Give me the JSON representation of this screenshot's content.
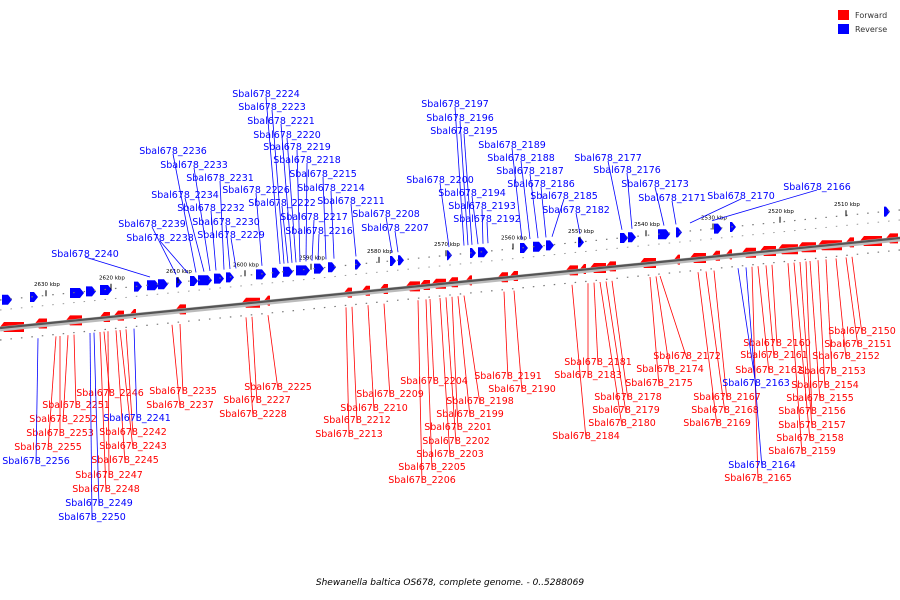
{
  "legend": {
    "forward_label": "Forward",
    "reverse_label": "Reverse",
    "forward_color": "#ff0000",
    "reverse_color": "#0000ff"
  },
  "caption": "Shewanella baltica OS678, complete genome. - 0..5288069",
  "axis": {
    "ticks": [
      "2630 kbp",
      "2620 kbp",
      "2610 kbp",
      "2600 kbp",
      "2590 kbp",
      "2580 kbp",
      "2570 kbp",
      "2560 kbp",
      "2550 kbp",
      "2540 kbp",
      "2530 kbp",
      "2520 kbp",
      "2510 kbp"
    ]
  },
  "genes": {
    "reverse": [
      "Sbal678_2166",
      "Sbal678_2170",
      "Sbal678_2171",
      "Sbal678_2173",
      "Sbal678_2176",
      "Sbal678_2177",
      "Sbal678_2182",
      "Sbal678_2185",
      "Sbal678_2186",
      "Sbal678_2187",
      "Sbal678_2188",
      "Sbal678_2189",
      "Sbal678_2192",
      "Sbal678_2193",
      "Sbal678_2194",
      "Sbal678_2195",
      "Sbal678_2196",
      "Sbal678_2197",
      "Sbal678_2200",
      "Sbal678_2207",
      "Sbal678_2208",
      "Sbal678_2211",
      "Sbal678_2214",
      "Sbal678_2215",
      "Sbal678_2216",
      "Sbal678_2217",
      "Sbal678_2218",
      "Sbal678_2219",
      "Sbal678_2220",
      "Sbal678_2221",
      "Sbal678_2222",
      "Sbal678_2223",
      "Sbal678_2224",
      "Sbal678_2226",
      "Sbal678_2229",
      "Sbal678_2230",
      "Sbal678_2231",
      "Sbal678_2232",
      "Sbal678_2233",
      "Sbal678_2234",
      "Sbal678_2236",
      "Sbal678_2238",
      "Sbal678_2239",
      "Sbal678_2240",
      "Sbal678_2163",
      "Sbal678_2164",
      "Sbal678_2241",
      "Sbal678_2249",
      "Sbal678_2250",
      "Sbal678_2256"
    ],
    "forward": [
      "Sbal678_2150",
      "Sbal678_2151",
      "Sbal678_2152",
      "Sbal678_2153",
      "Sbal678_2154",
      "Sbal678_2155",
      "Sbal678_2156",
      "Sbal678_2157",
      "Sbal678_2158",
      "Sbal678_2159",
      "Sbal678_2160",
      "Sbal678_2161",
      "Sbal678_2162",
      "Sbal678_2165",
      "Sbal678_2167",
      "Sbal678_2168",
      "Sbal678_2169",
      "Sbal678_2172",
      "Sbal678_2174",
      "Sbal678_2175",
      "Sbal678_2178",
      "Sbal678_2179",
      "Sbal678_2180",
      "Sbal678_2181",
      "Sbal678_2183",
      "Sbal678_2184",
      "Sbal678_2190",
      "Sbal678_2191",
      "Sbal678_2198",
      "Sbal678_2199",
      "Sbal678_2201",
      "Sbal678_2202",
      "Sbal678_2203",
      "Sbal678_2204",
      "Sbal678_2205",
      "Sbal678_2206",
      "Sbal678_2209",
      "Sbal678_2210",
      "Sbal678_2212",
      "Sbal678_2213",
      "Sbal678_2225",
      "Sbal678_2227",
      "Sbal678_2228",
      "Sbal678_2235",
      "Sbal678_2237",
      "Sbal678_2242",
      "Sbal678_2243",
      "Sbal678_2245",
      "Sbal678_2246",
      "Sbal678_2247",
      "Sbal678_2248",
      "Sbal678_2251",
      "Sbal678_2252",
      "Sbal678_2253",
      "Sbal678_2255"
    ]
  }
}
